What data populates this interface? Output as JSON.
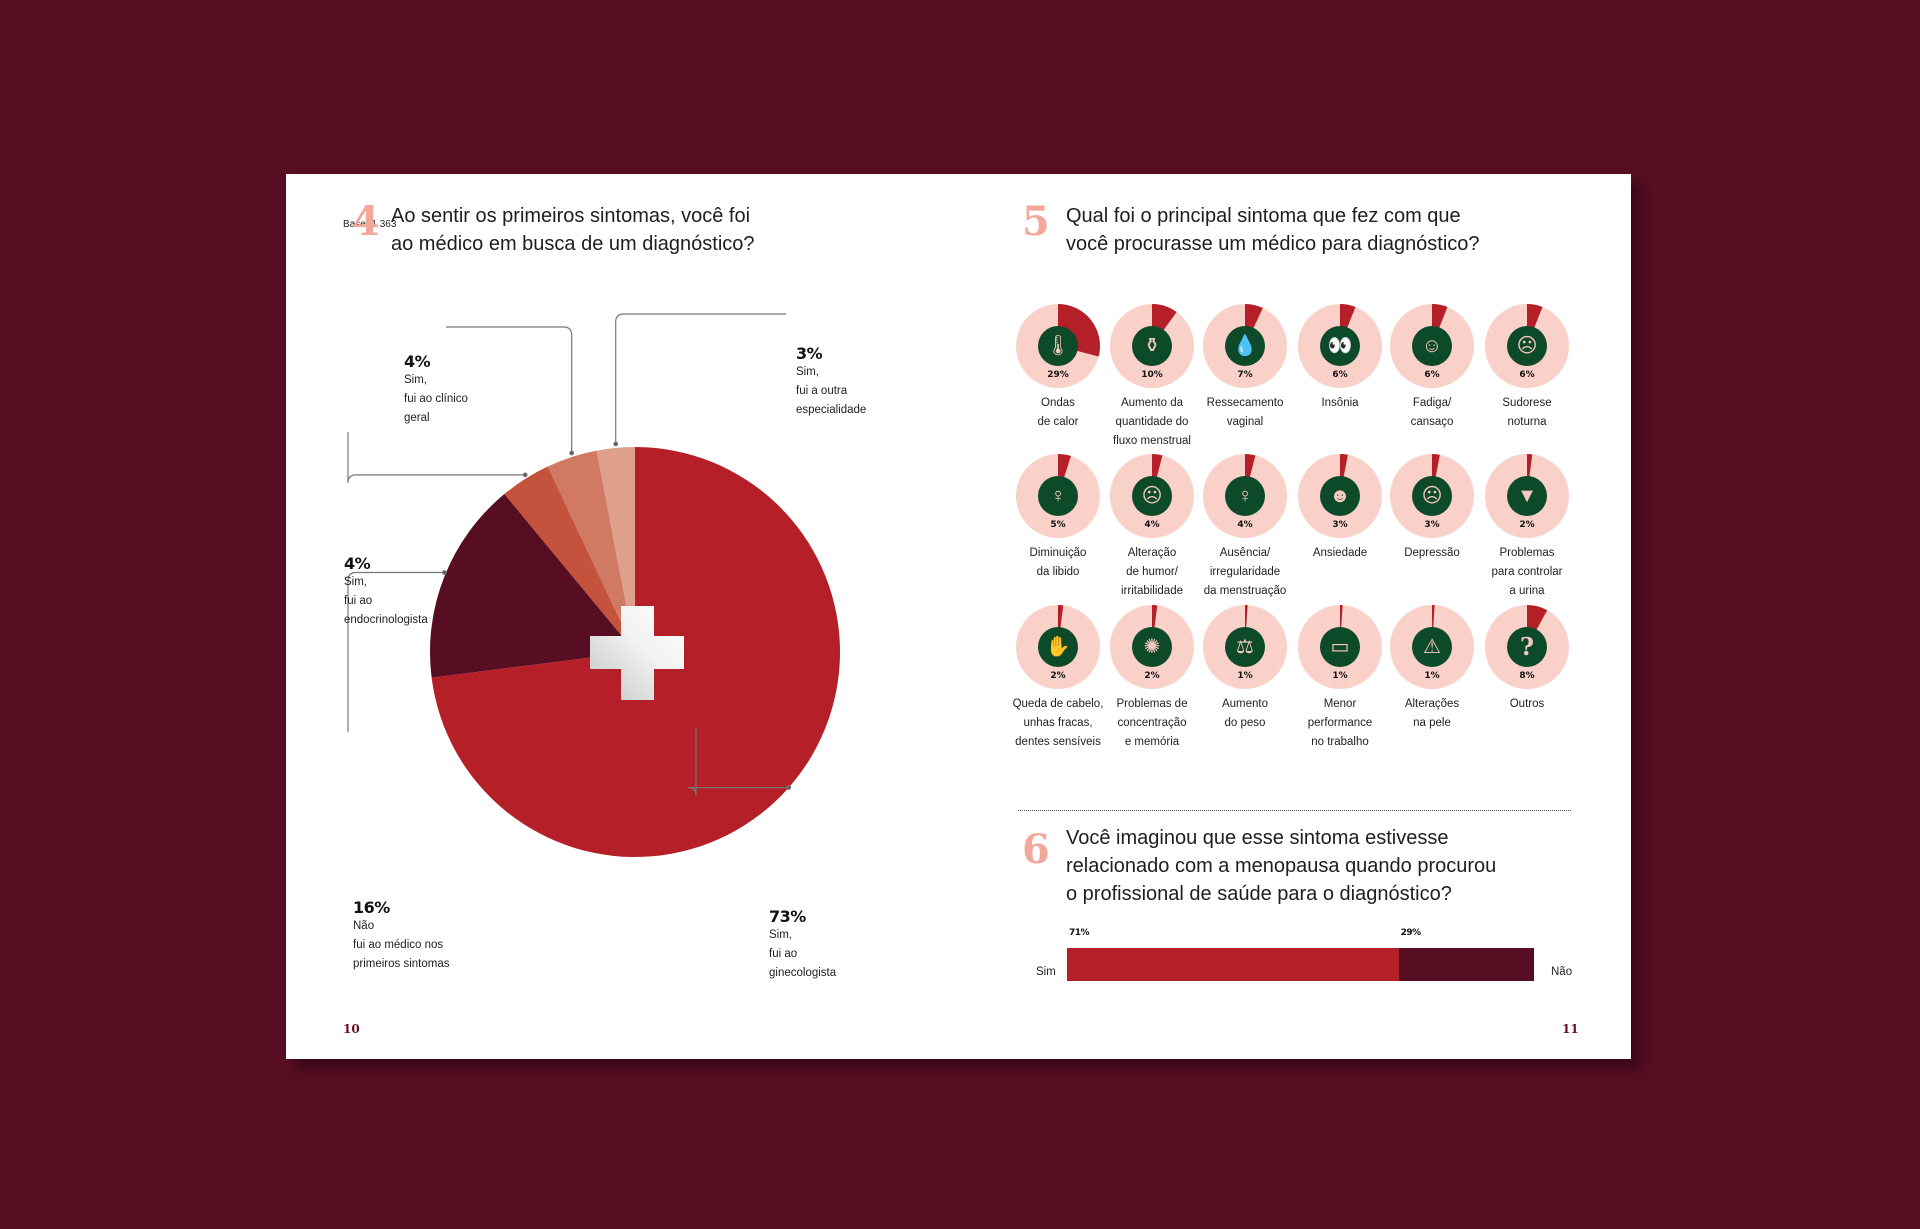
{
  "page": {
    "background_color": "#570d22",
    "base_label": "Base: 1 363",
    "page_left": "10",
    "page_right": "11"
  },
  "colors": {
    "red": "#b51f27",
    "dark": "#570d22",
    "coral": "#c4523d",
    "salmon": "#d17a63",
    "peach": "#dea08b",
    "ring_bg": "#f9d1c9",
    "icon_bg": "#0d4a2a",
    "accent_number": "#f2a89b"
  },
  "q4": {
    "number": "4",
    "title_line1": "Ao sentir os primeiros sintomas, você foi",
    "title_line2": " ao médico em busca de um diagnóstico?"
  },
  "q5": {
    "number": "5",
    "title_line1": "Qual foi o principal sintoma que fez com que",
    "title_line2": "você procurasse um médico para diagnóstico?"
  },
  "q6": {
    "number": "6",
    "title_line1": "Você imaginou que esse sintoma estivesse",
    "title_line2": "relacionado com a menopausa quando procurou",
    "title_line3": "o profissional de saúde para o diagnóstico?"
  },
  "chart_data": [
    {
      "type": "pie",
      "title": "Ao sentir os primeiros sintomas, você foi ao médico em busca de um diagnóstico?",
      "start": "12 o'clock, first slices counterclockwise",
      "center_icon": "medical-cross",
      "slices": [
        {
          "key": "outra",
          "value": 3,
          "label": "3%",
          "text": [
            "Sim,",
            "fui a outra",
            "especialidade"
          ],
          "color": "#dea08b"
        },
        {
          "key": "clinico",
          "value": 4,
          "label": "4%",
          "text": [
            "Sim,",
            "fui ao clínico",
            "geral"
          ],
          "color": "#d17a63"
        },
        {
          "key": "endo",
          "value": 4,
          "label": "4%",
          "text": [
            "Sim,",
            "fui ao",
            "endocrinologista"
          ],
          "color": "#c4523d"
        },
        {
          "key": "nao",
          "value": 16,
          "label": "16%",
          "text": [
            "Não",
            "fui ao médico nos",
            "primeiros sintomas"
          ],
          "color": "#570d22"
        },
        {
          "key": "gine",
          "value": 73,
          "label": "73%",
          "text": [
            "Sim,",
            "fui ao",
            "ginecologista"
          ],
          "color": "#b51f27"
        }
      ]
    },
    {
      "type": "pie",
      "title": "Qual foi o principal sintoma que fez com que você procurasse um médico para diagnóstico?",
      "layout": "grid of ring charts, 6 per row, 3 rows",
      "items": [
        {
          "value": 29,
          "label": "29%",
          "text": [
            "Ondas",
            "de calor"
          ],
          "icon": "flame-thermometer-icon",
          "glyph": "🌡"
        },
        {
          "value": 10,
          "label": "10%",
          "text": [
            "Aumento da",
            "quantidade do",
            "fluxo menstrual"
          ],
          "icon": "menstrual-cup-icon",
          "glyph": "⚱"
        },
        {
          "value": 7,
          "label": "7%",
          "text": [
            "Ressecamento",
            "vaginal"
          ],
          "icon": "crossed-drop-icon",
          "glyph": "💧"
        },
        {
          "value": 6,
          "label": "6%",
          "text": [
            "Insônia"
          ],
          "icon": "open-eyes-icon",
          "glyph": "👀"
        },
        {
          "value": 6,
          "label": "6%",
          "text": [
            "Fadiga/",
            "cansaço"
          ],
          "icon": "tired-person-icon",
          "glyph": "☺"
        },
        {
          "value": 6,
          "label": "6%",
          "text": [
            "Sudorese",
            "noturna"
          ],
          "icon": "sweating-face-icon",
          "glyph": "☹"
        },
        {
          "value": 5,
          "label": "5%",
          "text": [
            "Diminuição",
            "da libido"
          ],
          "icon": "woman-arms-crossed-icon",
          "glyph": "♀"
        },
        {
          "value": 4,
          "label": "4%",
          "text": [
            "Alteração",
            "de humor/",
            "irritabilidade"
          ],
          "icon": "angry-face-icon",
          "glyph": "☹"
        },
        {
          "value": 4,
          "label": "4%",
          "text": [
            "Ausência/",
            "irregularidade",
            "da menstruação"
          ],
          "icon": "uterus-icon",
          "glyph": "♀"
        },
        {
          "value": 3,
          "label": "3%",
          "text": [
            "Ansiedade"
          ],
          "icon": "anxious-person-icon",
          "glyph": "☻"
        },
        {
          "value": 3,
          "label": "3%",
          "text": [
            "Depressão"
          ],
          "icon": "sad-profile-icon",
          "glyph": "☹"
        },
        {
          "value": 2,
          "label": "2%",
          "text": [
            "Problemas",
            "para controlar",
            "a urina"
          ],
          "icon": "bladder-drop-icon",
          "glyph": "▼"
        },
        {
          "value": 2,
          "label": "2%",
          "text": [
            "Queda de cabelo,",
            "unhas fracas,",
            "dentes sensíveis"
          ],
          "icon": "hand-icon",
          "glyph": "✋"
        },
        {
          "value": 2,
          "label": "2%",
          "text": [
            "Problemas de",
            "concentração",
            "e memória"
          ],
          "icon": "brain-head-icon",
          "glyph": "✺"
        },
        {
          "value": 1,
          "label": "1%",
          "text": [
            "Aumento",
            "do peso"
          ],
          "icon": "scale-icon",
          "glyph": "⚖"
        },
        {
          "value": 1,
          "label": "1%",
          "text": [
            "Menor",
            "performance",
            "no trabalho"
          ],
          "icon": "monitor-chart-icon",
          "glyph": "▭"
        },
        {
          "value": 1,
          "label": "1%",
          "text": [
            "Alterações",
            "na pele"
          ],
          "icon": "skin-warning-icon",
          "glyph": "⚠"
        },
        {
          "value": 8,
          "label": "8%",
          "text": [
            "Outros"
          ],
          "icon": "question-mark-icon",
          "glyph": "?"
        }
      ]
    },
    {
      "type": "bar",
      "title": "Você imaginou que esse sintoma estivesse relacionado com a menopausa quando procurou o profissional de saúde para o diagnóstico?",
      "orientation": "horizontal-stacked",
      "categories": [
        "Sim",
        "Não"
      ],
      "values": [
        71,
        29
      ],
      "labels": [
        "71%",
        "29%"
      ],
      "colors": [
        "#b51f27",
        "#570d22"
      ]
    }
  ]
}
